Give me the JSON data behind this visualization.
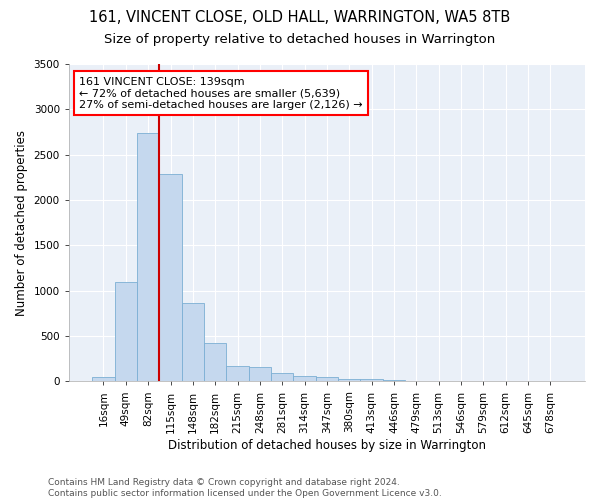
{
  "title": "161, VINCENT CLOSE, OLD HALL, WARRINGTON, WA5 8TB",
  "subtitle": "Size of property relative to detached houses in Warrington",
  "xlabel": "Distribution of detached houses by size in Warrington",
  "ylabel": "Number of detached properties",
  "bar_color": "#c5d8ee",
  "bar_edge_color": "#7bafd4",
  "background_color": "#eaf0f8",
  "grid_color": "#d0d8e8",
  "categories": [
    "16sqm",
    "49sqm",
    "82sqm",
    "115sqm",
    "148sqm",
    "182sqm",
    "215sqm",
    "248sqm",
    "281sqm",
    "314sqm",
    "347sqm",
    "380sqm",
    "413sqm",
    "446sqm",
    "479sqm",
    "513sqm",
    "546sqm",
    "579sqm",
    "612sqm",
    "645sqm",
    "678sqm"
  ],
  "values": [
    50,
    1100,
    2740,
    2290,
    870,
    420,
    165,
    160,
    90,
    60,
    50,
    30,
    25,
    15,
    5,
    2,
    2,
    0,
    0,
    0,
    0
  ],
  "ylim": [
    0,
    3500
  ],
  "yticks": [
    0,
    500,
    1000,
    1500,
    2000,
    2500,
    3000,
    3500
  ],
  "property_line_x": 2.5,
  "annotation_text": "161 VINCENT CLOSE: 139sqm\n← 72% of detached houses are smaller (5,639)\n27% of semi-detached houses are larger (2,126) →",
  "annotation_box_color": "white",
  "annotation_box_edge_color": "red",
  "line_color": "#cc0000",
  "footer_line1": "Contains HM Land Registry data © Crown copyright and database right 2024.",
  "footer_line2": "Contains public sector information licensed under the Open Government Licence v3.0.",
  "title_fontsize": 10.5,
  "subtitle_fontsize": 9.5,
  "axis_label_fontsize": 8.5,
  "tick_fontsize": 7.5,
  "annotation_fontsize": 8,
  "footer_fontsize": 6.5
}
